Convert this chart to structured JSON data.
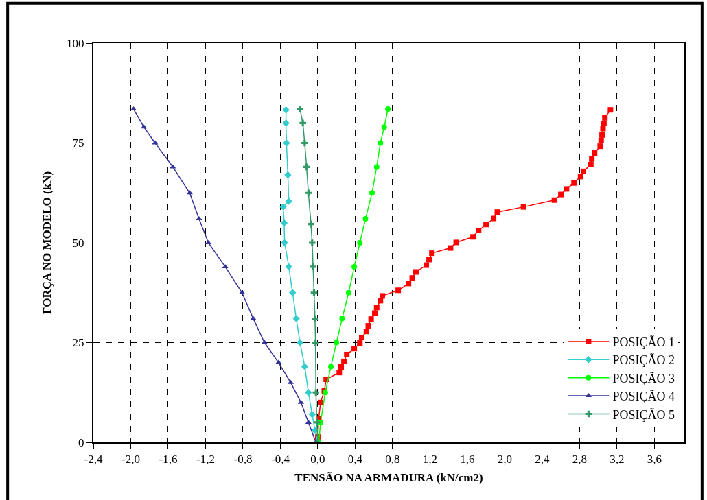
{
  "chart_data": {
    "type": "line",
    "xlabel": "TENSÃO NA ARMADURA (kN/cm2)",
    "ylabel": "FORÇA NO MODELO (kN)",
    "xlim": [
      -2.4,
      3.92
    ],
    "ylim": [
      0,
      100
    ],
    "xticks": [
      {
        "value": -2.4,
        "label": "-2,4"
      },
      {
        "value": -2.0,
        "label": "-2,0"
      },
      {
        "value": -1.6,
        "label": "-1,6"
      },
      {
        "value": -1.2,
        "label": "-1,2"
      },
      {
        "value": -0.8,
        "label": "-0,8"
      },
      {
        "value": -0.4,
        "label": "-0,4"
      },
      {
        "value": 0,
        "label": "0,0"
      },
      {
        "value": 0.4,
        "label": "0,4"
      },
      {
        "value": 0.8,
        "label": "0,8"
      },
      {
        "value": 1.2,
        "label": "1,2"
      },
      {
        "value": 1.6,
        "label": "1,6"
      },
      {
        "value": 2.0,
        "label": "2,0"
      },
      {
        "value": 2.4,
        "label": "2,4"
      },
      {
        "value": 2.8,
        "label": "2,8"
      },
      {
        "value": 3.2,
        "label": "3,2"
      },
      {
        "value": 3.6,
        "label": "3,6"
      }
    ],
    "yticks": [
      0,
      25,
      50,
      75,
      100
    ],
    "grid": true,
    "legend": "bottom right",
    "line_style": "solid",
    "series": [
      {
        "name": "POSIÇÃO 1",
        "color": "#ff0000",
        "marker": "square",
        "x": [
          0.0,
          0.01,
          0.03,
          0.07,
          0.09,
          0.23,
          0.25,
          0.28,
          0.31,
          0.39,
          0.45,
          0.47,
          0.52,
          0.54,
          0.57,
          0.61,
          0.63,
          0.67,
          0.69,
          0.86,
          0.97,
          1.01,
          1.05,
          1.16,
          1.19,
          1.22,
          1.42,
          1.48,
          1.66,
          1.72,
          1.8,
          1.88,
          1.92,
          2.2,
          2.53,
          2.6,
          2.66,
          2.74,
          2.81,
          2.84,
          2.92,
          2.93,
          2.96,
          3.02,
          3.03,
          3.04,
          3.05,
          3.06,
          3.07,
          3.13
        ],
        "values": [
          1.4,
          6.0,
          10.0,
          12.9,
          15.8,
          17.5,
          18.9,
          20.3,
          22.0,
          23.5,
          24.9,
          26.3,
          27.8,
          29.2,
          30.9,
          32.4,
          33.8,
          35.5,
          36.7,
          38.1,
          39.8,
          41.2,
          42.7,
          44.4,
          45.8,
          47.4,
          48.7,
          50.1,
          51.5,
          53.1,
          54.6,
          56.1,
          57.7,
          59.0,
          60.7,
          62.1,
          63.5,
          65.0,
          66.6,
          67.9,
          69.6,
          71.0,
          72.5,
          74.2,
          75.6,
          77.0,
          78.6,
          79.9,
          81.3,
          83.3
        ]
      },
      {
        "name": "POSIÇÃO 2",
        "color": "#33cccc",
        "marker": "diamond",
        "x": [
          0.0,
          -0.03,
          -0.06,
          -0.1,
          -0.14,
          -0.19,
          -0.23,
          -0.27,
          -0.31,
          -0.355,
          -0.36,
          -0.37,
          -0.31,
          -0.32,
          -0.335,
          -0.34,
          -0.34
        ],
        "values": [
          0,
          3,
          7,
          12.5,
          19,
          25,
          31,
          37.5,
          44,
          50,
          55,
          59,
          60.4,
          67,
          75,
          80,
          83.3
        ]
      },
      {
        "name": "POSIÇÃO 3",
        "color": "#00ff00",
        "marker": "circle",
        "x": [
          0.01,
          0.03,
          0.08,
          0.14,
          0.2,
          0.26,
          0.33,
          0.39,
          0.45,
          0.51,
          0.58,
          0.63,
          0.67,
          0.71,
          0.75
        ],
        "values": [
          0,
          5,
          12.5,
          19,
          25,
          31,
          37.5,
          44,
          50,
          56,
          62.5,
          69,
          75,
          79,
          83.5
        ]
      },
      {
        "name": "POSIÇÃO 4",
        "color": "#333399",
        "marker": "triangle",
        "x": [
          -0.02,
          -0.1,
          -0.18,
          -0.29,
          -0.42,
          -0.57,
          -0.69,
          -0.81,
          -0.99,
          -1.17,
          -1.27,
          -1.37,
          -1.55,
          -1.74,
          -1.86,
          -1.97
        ],
        "values": [
          0,
          5,
          10,
          15,
          20,
          25,
          31,
          37.5,
          44,
          50,
          56,
          62.5,
          69,
          75,
          79,
          83.5
        ]
      },
      {
        "name": "POSIÇÃO 5",
        "color": "#339966",
        "marker": "cross",
        "x": [
          0.0,
          -0.01,
          -0.02,
          -0.024,
          -0.03,
          -0.04,
          -0.05,
          -0.06,
          -0.073,
          -0.1,
          -0.12,
          -0.14,
          -0.16,
          -0.19
        ],
        "values": [
          0,
          5,
          12.5,
          25,
          31,
          37.5,
          44,
          50,
          54.7,
          62.5,
          69,
          75,
          80,
          83.5
        ]
      }
    ]
  }
}
